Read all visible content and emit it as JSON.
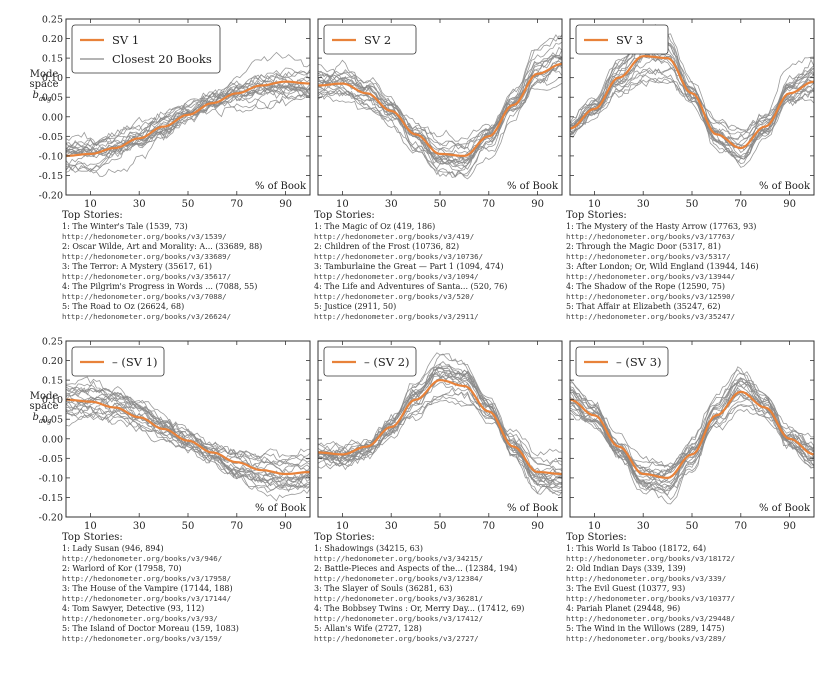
{
  "shared": {
    "xlabel": "% of Book",
    "ylabel_lines": [
      "Mode",
      "space",
      "b",
      "avg"
    ],
    "xlim": [
      0,
      100
    ],
    "ylim": [
      -0.2,
      0.25
    ],
    "xticks": [
      10,
      30,
      50,
      70,
      90
    ],
    "yticks": [
      -0.2,
      -0.15,
      -0.1,
      -0.05,
      0.0,
      0.05,
      0.1,
      0.15,
      0.2,
      0.25
    ],
    "ytick_labels": [
      "-0.20",
      "-0.15",
      "-0.10",
      "-0.05",
      "0.00",
      "0.05",
      "0.10",
      "0.15",
      "0.20",
      "0.25"
    ],
    "xtick_labels": [
      "10",
      "30",
      "50",
      "70",
      "90"
    ],
    "stories_header": "Top Stories:",
    "colors": {
      "sv": "#e8823a",
      "books": "#888888"
    }
  },
  "chart_data": [
    {
      "type": "line",
      "legend": [
        "SV 1",
        "Closest 20 Books"
      ],
      "legend_placement": "top-left",
      "x": [
        0,
        10,
        20,
        30,
        40,
        50,
        60,
        70,
        80,
        90,
        100
      ],
      "series": [
        {
          "name": "SV 1",
          "values": [
            -0.1,
            -0.095,
            -0.08,
            -0.055,
            -0.025,
            0.005,
            0.035,
            0.06,
            0.08,
            0.09,
            0.085
          ]
        }
      ],
      "stories": [
        {
          "title": "1: The Winter's Tale (1539, 73)",
          "url": "http://hedonometer.org/books/v3/1539/"
        },
        {
          "title": "2: Oscar Wilde, Art and Morality: A... (33689, 88)",
          "url": "http://hedonometer.org/books/v3/33689/"
        },
        {
          "title": "3: The Terror: A Mystery (35617, 61)",
          "url": "http://hedonometer.org/books/v3/35617/"
        },
        {
          "title": "4: The Pilgrim's Progress in Words ... (7088, 55)",
          "url": "http://hedonometer.org/books/v3/7088/"
        },
        {
          "title": "5: The Road to Oz (26624, 68)",
          "url": "http://hedonometer.org/books/v3/26624/"
        }
      ]
    },
    {
      "type": "line",
      "legend": [
        "SV 2"
      ],
      "legend_placement": "top-left",
      "x": [
        0,
        10,
        20,
        30,
        40,
        50,
        60,
        70,
        80,
        90,
        100
      ],
      "series": [
        {
          "name": "SV 2",
          "values": [
            0.08,
            0.085,
            0.06,
            0.015,
            -0.045,
            -0.095,
            -0.1,
            -0.05,
            0.03,
            0.11,
            0.135
          ]
        }
      ],
      "stories": [
        {
          "title": "1: The Magic of Oz (419, 186)",
          "url": "http://hedonometer.org/books/v3/419/"
        },
        {
          "title": "2: Children of the Frost (10736, 82)",
          "url": "http://hedonometer.org/books/v3/10736/"
        },
        {
          "title": "3: Tamburlaine the Great — Part 1 (1094, 474)",
          "url": "http://hedonometer.org/books/v3/1094/"
        },
        {
          "title": "4: The Life and Adventures of Santa... (520, 76)",
          "url": "http://hedonometer.org/books/v3/520/"
        },
        {
          "title": "5: Justice (2911, 50)",
          "url": "http://hedonometer.org/books/v3/2911/"
        }
      ]
    },
    {
      "type": "line",
      "legend": [
        "SV 3"
      ],
      "legend_placement": "top-left",
      "x": [
        0,
        10,
        20,
        30,
        40,
        50,
        60,
        70,
        80,
        90,
        100
      ],
      "series": [
        {
          "name": "SV 3",
          "values": [
            -0.03,
            0.02,
            0.1,
            0.155,
            0.15,
            0.06,
            -0.045,
            -0.08,
            -0.025,
            0.06,
            0.09
          ]
        }
      ],
      "stories": [
        {
          "title": "1: The Mystery of the Hasty Arrow (17763, 93)",
          "url": "http://hedonometer.org/books/v3/17763/"
        },
        {
          "title": "2: Through the Magic Door (5317, 81)",
          "url": "http://hedonometer.org/books/v3/5317/"
        },
        {
          "title": "3: After London; Or, Wild England (13944, 146)",
          "url": "http://hedonometer.org/books/v3/13944/"
        },
        {
          "title": "4: The Shadow of the Rope (12590, 75)",
          "url": "http://hedonometer.org/books/v3/12590/"
        },
        {
          "title": "5: That Affair at Elizabeth (35247, 62)",
          "url": "http://hedonometer.org/books/v3/35247/"
        }
      ]
    },
    {
      "type": "line",
      "legend": [
        "– (SV 1)"
      ],
      "legend_placement": "top-left",
      "x": [
        0,
        10,
        20,
        30,
        40,
        50,
        60,
        70,
        80,
        90,
        100
      ],
      "series": [
        {
          "name": "– (SV 1)",
          "values": [
            0.1,
            0.095,
            0.08,
            0.055,
            0.025,
            -0.005,
            -0.035,
            -0.06,
            -0.08,
            -0.09,
            -0.085
          ]
        }
      ],
      "stories": [
        {
          "title": "1: Lady Susan (946, 894)",
          "url": "http://hedonometer.org/books/v3/946/"
        },
        {
          "title": "2: Warlord of Kor (17958, 70)",
          "url": "http://hedonometer.org/books/v3/17958/"
        },
        {
          "title": "3: The House of the Vampire (17144, 188)",
          "url": "http://hedonometer.org/books/v3/17144/"
        },
        {
          "title": "4: Tom Sawyer, Detective (93, 112)",
          "url": "http://hedonometer.org/books/v3/93/"
        },
        {
          "title": "5: The Island of Doctor Moreau (159, 1083)",
          "url": "http://hedonometer.org/books/v3/159/"
        }
      ]
    },
    {
      "type": "line",
      "legend": [
        "– (SV 2)"
      ],
      "legend_placement": "top-left",
      "x": [
        0,
        10,
        20,
        30,
        40,
        50,
        60,
        70,
        80,
        90,
        100
      ],
      "series": [
        {
          "name": "– (SV 2)",
          "values": [
            -0.035,
            -0.04,
            -0.02,
            0.03,
            0.1,
            0.15,
            0.135,
            0.07,
            -0.02,
            -0.085,
            -0.09
          ]
        }
      ],
      "stories": [
        {
          "title": "1: Shadowings (34215, 63)",
          "url": "http://hedonometer.org/books/v3/34215/"
        },
        {
          "title": "2: Battle-Pieces and Aspects of the... (12384, 194)",
          "url": "http://hedonometer.org/books/v3/12384/"
        },
        {
          "title": "3: The Slayer of Souls (36281, 63)",
          "url": "http://hedonometer.org/books/v3/36281/"
        },
        {
          "title": "4: The Bobbsey Twins : Or, Merry Day... (17412, 69)",
          "url": "http://hedonometer.org/books/v3/17412/"
        },
        {
          "title": "5: Allan's Wife (2727, 128)",
          "url": "http://hedonometer.org/books/v3/2727/"
        }
      ]
    },
    {
      "type": "line",
      "legend": [
        "– (SV 3)"
      ],
      "legend_placement": "top-left",
      "x": [
        0,
        10,
        20,
        30,
        40,
        50,
        60,
        70,
        80,
        90,
        100
      ],
      "series": [
        {
          "name": "– (SV 3)",
          "values": [
            0.1,
            0.06,
            -0.02,
            -0.09,
            -0.1,
            -0.04,
            0.06,
            0.12,
            0.08,
            0.0,
            -0.04
          ]
        }
      ],
      "stories": [
        {
          "title": "1: This World Is Taboo (18172, 64)",
          "url": "http://hedonometer.org/books/v3/18172/"
        },
        {
          "title": "2: Old Indian Days (339, 139)",
          "url": "http://hedonometer.org/books/v3/339/"
        },
        {
          "title": "3: The Evil Guest (10377, 93)",
          "url": "http://hedonometer.org/books/v3/10377/"
        },
        {
          "title": "4: Pariah Planet (29448, 96)",
          "url": "http://hedonometer.org/books/v3/29448/"
        },
        {
          "title": "5: The Wind in the Willows (289, 1475)",
          "url": "http://hedonometer.org/books/v3/289/"
        }
      ]
    }
  ]
}
